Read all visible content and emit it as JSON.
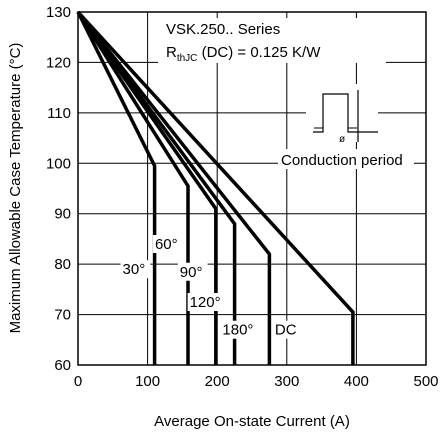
{
  "chart_data": {
    "type": "line",
    "xlabel": "Average On-state Current (A)",
    "ylabel": "Maximum Allowable Case Temperature (°C)",
    "xlim": [
      0,
      500
    ],
    "ylim": [
      60,
      130
    ],
    "x_ticks": [
      0,
      100,
      200,
      300,
      400,
      500
    ],
    "y_ticks": [
      60,
      70,
      80,
      90,
      100,
      110,
      120,
      130
    ],
    "grid": true,
    "annotations": {
      "series_title": "VSK.250.. Series",
      "rth_prefix": "R",
      "rth_sub": "thJC",
      "rth_suffix": " (DC) = 0.125 K/W",
      "conduction_period": "Conduction period",
      "phi": "ø"
    },
    "series": [
      {
        "label": "30°",
        "x": [
          0,
          110,
          110
        ],
        "y": [
          130,
          99.5,
          60
        ]
      },
      {
        "label": "60°",
        "x": [
          0,
          158,
          158
        ],
        "y": [
          130,
          95.5,
          60
        ]
      },
      {
        "label": "90°",
        "x": [
          0,
          198,
          198
        ],
        "y": [
          130,
          91,
          60
        ]
      },
      {
        "label": "120°",
        "x": [
          0,
          225,
          225
        ],
        "y": [
          130,
          88,
          60
        ]
      },
      {
        "label": "180°",
        "x": [
          0,
          275,
          275
        ],
        "y": [
          130,
          82,
          60
        ]
      },
      {
        "label": "DC",
        "x": [
          0,
          395,
          395
        ],
        "y": [
          130,
          70.5,
          60
        ]
      }
    ]
  }
}
